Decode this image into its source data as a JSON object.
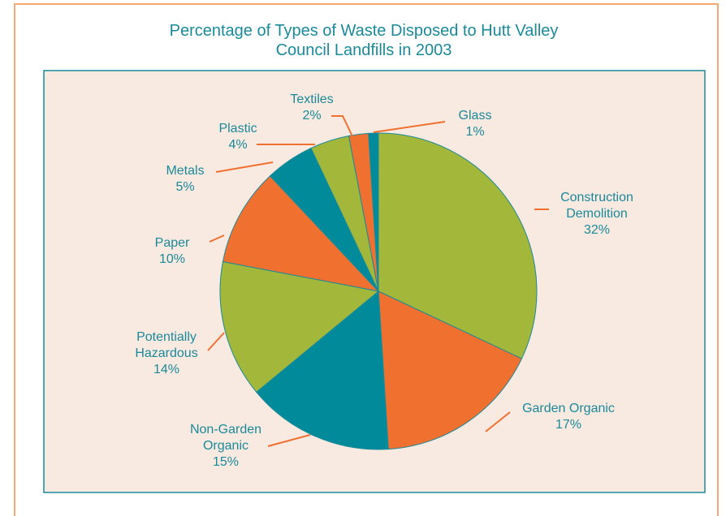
{
  "chart_data": {
    "type": "pie",
    "title": "Percentage of Types of Waste Disposed to Hutt Valley\nCouncil Landfills in 2003",
    "categories": [
      "Construction\nDemolition",
      "Garden Organic",
      "Non-Garden\nOrganic",
      "Potentially\nHazardous",
      "Paper",
      "Metals",
      "Plastic",
      "Textiles",
      "Glass"
    ],
    "values": [
      32,
      17,
      15,
      14,
      10,
      5,
      4,
      2,
      1
    ],
    "value_labels": [
      "32%",
      "17%",
      "15%",
      "14%",
      "10%",
      "5%",
      "4%",
      "2%",
      "1%"
    ],
    "colors": [
      "#a3b83a",
      "#f07030",
      "#008a9a",
      "#a3b83a",
      "#f07030",
      "#008a9a",
      "#a3b83a",
      "#f07030",
      "#008a9a"
    ]
  }
}
